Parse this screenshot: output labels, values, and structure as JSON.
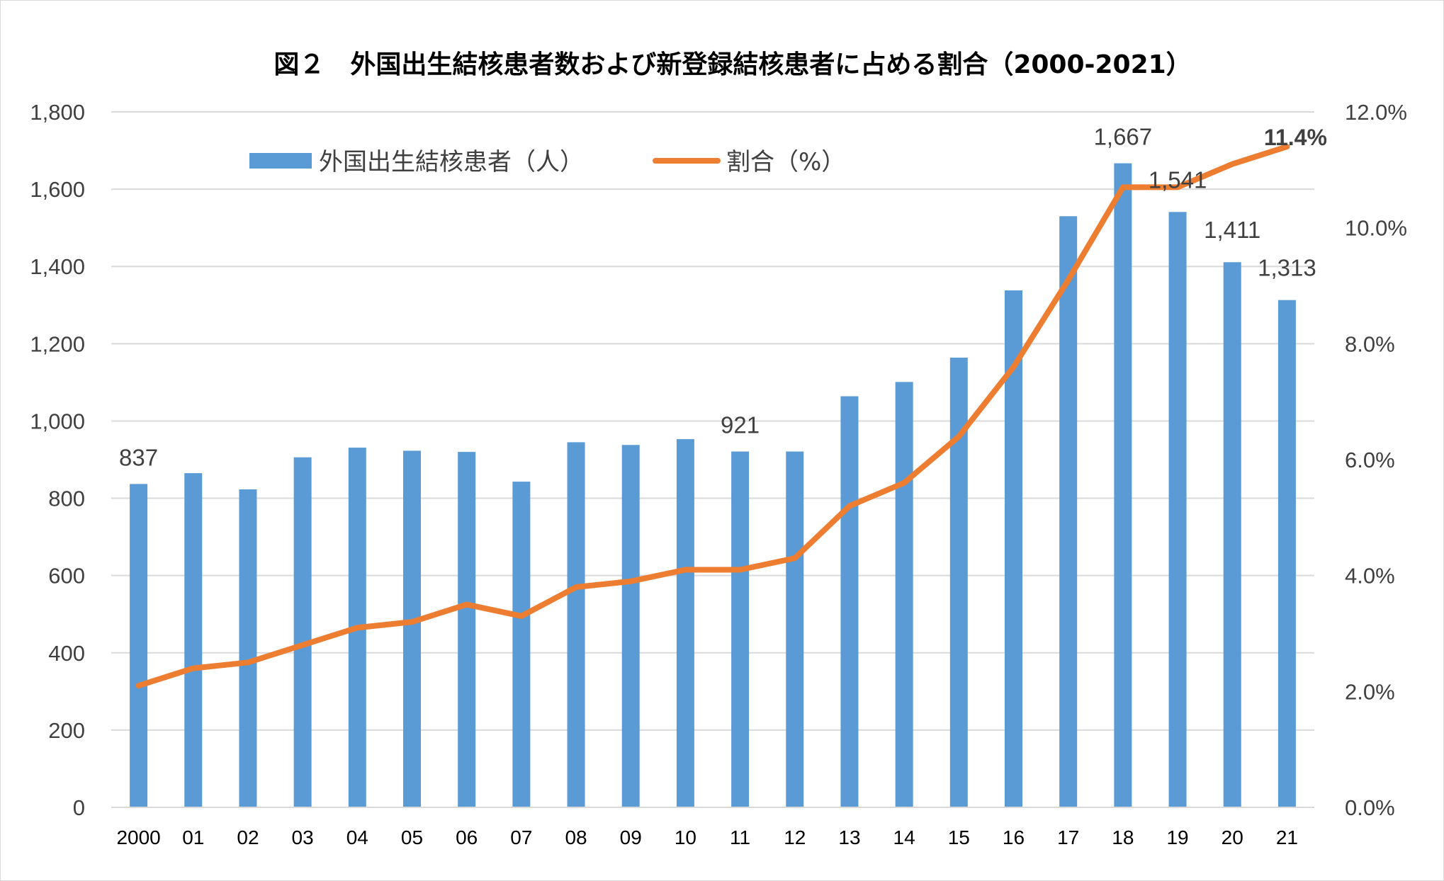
{
  "title": "図２　外国出生結核患者数および新登録結核患者に占める割合（2000-2021）",
  "colors": {
    "bar": "#5b9bd5",
    "line": "#ed7d31",
    "grid": "#d9d9d9",
    "text": "#404040"
  },
  "chart_data": {
    "type": "bar+line",
    "title": "図２　外国出生結核患者数および新登録結核患者に占める割合（2000-2021）",
    "categories": [
      "2000",
      "01",
      "02",
      "03",
      "04",
      "05",
      "06",
      "07",
      "08",
      "09",
      "10",
      "11",
      "12",
      "13",
      "14",
      "15",
      "16",
      "17",
      "18",
      "19",
      "20",
      "21"
    ],
    "series": [
      {
        "name": "外国出生結核患者（人）",
        "type": "bar",
        "axis": "left",
        "values": [
          837,
          865,
          823,
          906,
          931,
          923,
          920,
          843,
          945,
          938,
          953,
          921,
          921,
          1064,
          1101,
          1164,
          1338,
          1530,
          1667,
          1541,
          1411,
          1313
        ]
      },
      {
        "name": "割合（%）",
        "type": "line",
        "axis": "right",
        "values": [
          2.1,
          2.4,
          2.5,
          2.8,
          3.1,
          3.2,
          3.5,
          3.3,
          3.8,
          3.9,
          4.1,
          4.1,
          4.3,
          5.2,
          5.6,
          6.4,
          7.6,
          9.1,
          10.7,
          10.7,
          11.1,
          11.4
        ]
      }
    ],
    "y_left": {
      "min": 0,
      "max": 1800,
      "step": 200,
      "ticks": [
        "0",
        "200",
        "400",
        "600",
        "800",
        "1,000",
        "1,200",
        "1,400",
        "1,600",
        "1,800"
      ]
    },
    "y_right": {
      "min": 0,
      "max": 12,
      "step": 2,
      "ticks": [
        "0.0%",
        "2.0%",
        "4.0%",
        "6.0%",
        "8.0%",
        "10.0%",
        "12.0%"
      ]
    },
    "bar_labels": [
      {
        "index": 0,
        "text": "837"
      },
      {
        "index": 11,
        "text": "921"
      },
      {
        "index": 18,
        "text": "1,667"
      },
      {
        "index": 19,
        "text": "1,541"
      },
      {
        "index": 20,
        "text": "1,411"
      },
      {
        "index": 21,
        "text": "1,313"
      }
    ],
    "line_labels": [
      {
        "index": 21,
        "text": "11.4%"
      }
    ],
    "grid": true,
    "legend": "top-left"
  }
}
